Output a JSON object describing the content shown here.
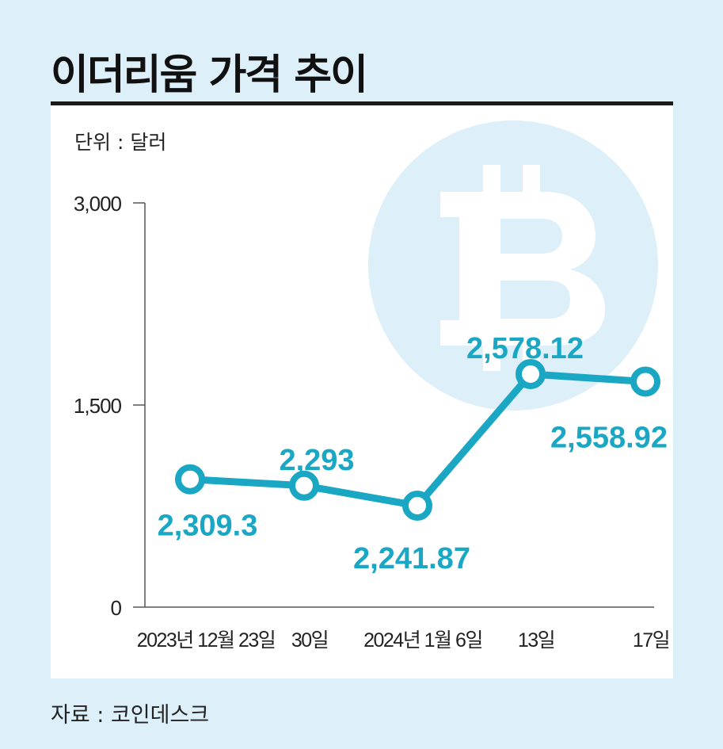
{
  "header": {
    "title": "이더리움 가격 추이",
    "unit": "단위 : 달러"
  },
  "footer": {
    "source": "자료 : 코인데스크"
  },
  "colors": {
    "accent": "#1aa7c4",
    "background": "#ddeff8",
    "panel": "#ffffff",
    "watermark": "#ddeff8"
  },
  "icons": {
    "watermark": "bitcoin-icon"
  },
  "chart_data": {
    "type": "line",
    "title": "이더리움 가격 추이",
    "xlabel": "",
    "ylabel": "",
    "categories": [
      "2023년 12월 23일",
      "30일",
      "2024년 1월 6일",
      "13일",
      "17일"
    ],
    "yticks": [
      "3,000",
      "1,500",
      "0"
    ],
    "ytick_values": [
      3000,
      1500,
      0
    ],
    "ylim": [
      0,
      3000
    ],
    "grid": false,
    "legend": "none",
    "series": [
      {
        "values": [
          2309.3,
          2293,
          2241.87,
          2578.12,
          2558.92
        ],
        "labels": [
          "2,309.3",
          "2,293",
          "2,241.87",
          "2,578.12",
          "2,558.92"
        ]
      }
    ]
  }
}
